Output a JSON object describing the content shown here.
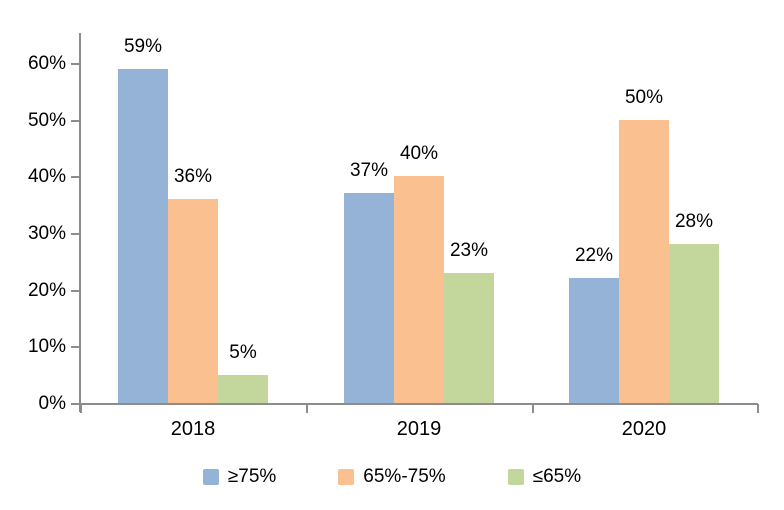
{
  "chart_data": {
    "type": "bar",
    "categories": [
      "2018",
      "2019",
      "2020"
    ],
    "series": [
      {
        "key": "ge-75",
        "name": "≥75%",
        "color": "#95B3D7",
        "values": [
          59,
          37,
          22
        ],
        "labels": [
          "59%",
          "37%",
          "22%"
        ]
      },
      {
        "key": "65-75",
        "name": "65%-75%",
        "color": "#FAC090",
        "values": [
          36,
          40,
          50
        ],
        "labels": [
          "36%",
          "40%",
          "50%"
        ]
      },
      {
        "key": "le-65",
        "name": "≤65%",
        "color": "#C3D69B",
        "values": [
          5,
          23,
          28
        ],
        "labels": [
          "5%",
          "23%",
          "28%"
        ]
      }
    ],
    "y_axis": {
      "ticks": [
        {
          "value": 0,
          "label": "0%"
        },
        {
          "value": 10,
          "label": "10%"
        },
        {
          "value": 20,
          "label": "20%"
        },
        {
          "value": 30,
          "label": "30%"
        },
        {
          "value": 40,
          "label": "40%"
        },
        {
          "value": 50,
          "label": "50%"
        },
        {
          "value": 60,
          "label": "60%"
        }
      ],
      "range": [
        0,
        65
      ]
    },
    "legend_position": "bottom",
    "grid": false,
    "data_labels": true,
    "axis_color": "#8C8C8C",
    "label_color": "#000000",
    "background": "#FFFFFF"
  }
}
